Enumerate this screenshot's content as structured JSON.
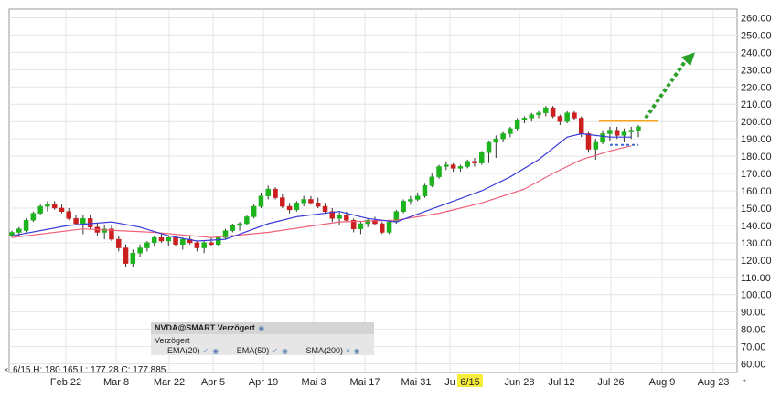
{
  "chart_data": {
    "type": "candlestick",
    "symbol_label": "NVDA@SMART Verzögert",
    "subtitle": "Verzögert",
    "ohlc_readout": "6/15  H: 180.165  L: 177.28  C: 177.885",
    "x_labels": [
      "Feb 22",
      "Mar 8",
      "Mar 22",
      "Apr 5",
      "Apr 19",
      "Mai 3",
      "Mai 17",
      "Mai 31",
      "Ju",
      "6/15",
      "Jun 28",
      "Jul 12",
      "Jul 26",
      "Aug 9",
      "Aug 23"
    ],
    "highlighted_x_label": "6/15",
    "y_ticks": [
      60,
      70,
      80,
      90,
      100,
      110,
      120,
      130,
      140,
      150,
      160,
      170,
      180,
      190,
      200,
      210,
      220,
      230,
      240,
      250,
      260
    ],
    "ylim": [
      55,
      265
    ],
    "legend": [
      {
        "name": "EMA(20)",
        "color": "#3b3bd9"
      },
      {
        "name": "EMA(50)",
        "color": "#f0607a"
      },
      {
        "name": "SMA(200)",
        "color": "#808080"
      }
    ],
    "colors": {
      "up": "#1db31d",
      "down": "#cc1f1f",
      "ema20": "#3b3bd9",
      "ema50": "#f0607a",
      "resistance": "#f5a623",
      "support": "#3b6bd9",
      "arrow": "#2aa02a"
    },
    "candles": [
      {
        "o": 134,
        "h": 137,
        "l": 133,
        "c": 136
      },
      {
        "o": 136,
        "h": 139,
        "l": 134,
        "c": 138
      },
      {
        "o": 137,
        "h": 144,
        "l": 136,
        "c": 143
      },
      {
        "o": 143,
        "h": 148,
        "l": 142,
        "c": 147
      },
      {
        "o": 147,
        "h": 152,
        "l": 146,
        "c": 151
      },
      {
        "o": 151,
        "h": 154,
        "l": 148,
        "c": 152
      },
      {
        "o": 152,
        "h": 154,
        "l": 149,
        "c": 150
      },
      {
        "o": 150,
        "h": 152,
        "l": 147,
        "c": 148
      },
      {
        "o": 148,
        "h": 150,
        "l": 143,
        "c": 144
      },
      {
        "o": 144,
        "h": 146,
        "l": 140,
        "c": 141
      },
      {
        "o": 141,
        "h": 146,
        "l": 135,
        "c": 144
      },
      {
        "o": 144,
        "h": 146,
        "l": 138,
        "c": 139
      },
      {
        "o": 139,
        "h": 141,
        "l": 134,
        "c": 136
      },
      {
        "o": 136,
        "h": 140,
        "l": 132,
        "c": 138
      },
      {
        "o": 138,
        "h": 140,
        "l": 131,
        "c": 132
      },
      {
        "o": 132,
        "h": 134,
        "l": 125,
        "c": 127
      },
      {
        "o": 127,
        "h": 129,
        "l": 116,
        "c": 118
      },
      {
        "o": 118,
        "h": 126,
        "l": 116,
        "c": 124
      },
      {
        "o": 124,
        "h": 129,
        "l": 122,
        "c": 127
      },
      {
        "o": 127,
        "h": 131,
        "l": 125,
        "c": 130
      },
      {
        "o": 130,
        "h": 134,
        "l": 128,
        "c": 133
      },
      {
        "o": 133,
        "h": 135,
        "l": 130,
        "c": 131
      },
      {
        "o": 131,
        "h": 134,
        "l": 128,
        "c": 133
      },
      {
        "o": 133,
        "h": 134,
        "l": 128,
        "c": 129
      },
      {
        "o": 129,
        "h": 133,
        "l": 126,
        "c": 132
      },
      {
        "o": 132,
        "h": 134,
        "l": 129,
        "c": 130
      },
      {
        "o": 130,
        "h": 131,
        "l": 125,
        "c": 127
      },
      {
        "o": 127,
        "h": 131,
        "l": 124,
        "c": 130
      },
      {
        "o": 130,
        "h": 133,
        "l": 128,
        "c": 129
      },
      {
        "o": 129,
        "h": 134,
        "l": 128,
        "c": 133
      },
      {
        "o": 133,
        "h": 138,
        "l": 132,
        "c": 137
      },
      {
        "o": 137,
        "h": 141,
        "l": 136,
        "c": 140
      },
      {
        "o": 140,
        "h": 142,
        "l": 137,
        "c": 141
      },
      {
        "o": 141,
        "h": 146,
        "l": 140,
        "c": 145
      },
      {
        "o": 145,
        "h": 152,
        "l": 144,
        "c": 151
      },
      {
        "o": 151,
        "h": 159,
        "l": 150,
        "c": 157
      },
      {
        "o": 157,
        "h": 163,
        "l": 155,
        "c": 161
      },
      {
        "o": 161,
        "h": 162,
        "l": 155,
        "c": 156
      },
      {
        "o": 156,
        "h": 158,
        "l": 150,
        "c": 151
      },
      {
        "o": 151,
        "h": 153,
        "l": 147,
        "c": 149
      },
      {
        "o": 149,
        "h": 154,
        "l": 148,
        "c": 153
      },
      {
        "o": 153,
        "h": 157,
        "l": 151,
        "c": 155
      },
      {
        "o": 155,
        "h": 157,
        "l": 152,
        "c": 153
      },
      {
        "o": 153,
        "h": 156,
        "l": 150,
        "c": 151
      },
      {
        "o": 151,
        "h": 153,
        "l": 147,
        "c": 148
      },
      {
        "o": 148,
        "h": 150,
        "l": 142,
        "c": 144
      },
      {
        "o": 144,
        "h": 148,
        "l": 140,
        "c": 146
      },
      {
        "o": 146,
        "h": 148,
        "l": 142,
        "c": 143
      },
      {
        "o": 143,
        "h": 144,
        "l": 136,
        "c": 138
      },
      {
        "o": 138,
        "h": 142,
        "l": 135,
        "c": 141
      },
      {
        "o": 141,
        "h": 144,
        "l": 139,
        "c": 143
      },
      {
        "o": 143,
        "h": 145,
        "l": 140,
        "c": 141
      },
      {
        "o": 141,
        "h": 142,
        "l": 135,
        "c": 136
      },
      {
        "o": 136,
        "h": 143,
        "l": 135,
        "c": 142
      },
      {
        "o": 142,
        "h": 149,
        "l": 141,
        "c": 148
      },
      {
        "o": 148,
        "h": 155,
        "l": 147,
        "c": 154
      },
      {
        "o": 154,
        "h": 157,
        "l": 152,
        "c": 155
      },
      {
        "o": 155,
        "h": 159,
        "l": 154,
        "c": 157
      },
      {
        "o": 157,
        "h": 164,
        "l": 156,
        "c": 163
      },
      {
        "o": 163,
        "h": 170,
        "l": 162,
        "c": 168
      },
      {
        "o": 168,
        "h": 175,
        "l": 167,
        "c": 174
      },
      {
        "o": 174,
        "h": 177,
        "l": 172,
        "c": 175
      },
      {
        "o": 175,
        "h": 176,
        "l": 171,
        "c": 173
      },
      {
        "o": 173,
        "h": 175,
        "l": 171,
        "c": 174
      },
      {
        "o": 174,
        "h": 178,
        "l": 173,
        "c": 177
      },
      {
        "o": 177,
        "h": 179,
        "l": 174,
        "c": 176
      },
      {
        "o": 176,
        "h": 183,
        "l": 175,
        "c": 182
      },
      {
        "o": 182,
        "h": 189,
        "l": 176,
        "c": 188
      },
      {
        "o": 188,
        "h": 192,
        "l": 179,
        "c": 190
      },
      {
        "o": 190,
        "h": 194,
        "l": 188,
        "c": 193
      },
      {
        "o": 193,
        "h": 197,
        "l": 191,
        "c": 196
      },
      {
        "o": 196,
        "h": 202,
        "l": 195,
        "c": 201
      },
      {
        "o": 201,
        "h": 203,
        "l": 199,
        "c": 202
      },
      {
        "o": 202,
        "h": 205,
        "l": 200,
        "c": 204
      },
      {
        "o": 204,
        "h": 206,
        "l": 202,
        "c": 205
      },
      {
        "o": 205,
        "h": 209,
        "l": 203,
        "c": 208
      },
      {
        "o": 208,
        "h": 209,
        "l": 202,
        "c": 203
      },
      {
        "o": 203,
        "h": 204,
        "l": 198,
        "c": 200
      },
      {
        "o": 200,
        "h": 206,
        "l": 199,
        "c": 205
      },
      {
        "o": 205,
        "h": 206,
        "l": 201,
        "c": 202
      },
      {
        "o": 202,
        "h": 203,
        "l": 191,
        "c": 193
      },
      {
        "o": 193,
        "h": 194,
        "l": 182,
        "c": 184
      },
      {
        "o": 184,
        "h": 190,
        "l": 178,
        "c": 188
      },
      {
        "o": 188,
        "h": 195,
        "l": 187,
        "c": 193
      },
      {
        "o": 193,
        "h": 197,
        "l": 189,
        "c": 195
      },
      {
        "o": 195,
        "h": 197,
        "l": 190,
        "c": 192
      },
      {
        "o": 192,
        "h": 196,
        "l": 188,
        "c": 194
      },
      {
        "o": 194,
        "h": 197,
        "l": 190,
        "c": 195
      },
      {
        "o": 195,
        "h": 198,
        "l": 191,
        "c": 197
      }
    ],
    "ema20": [
      [
        0,
        134
      ],
      [
        8,
        140
      ],
      [
        14,
        142
      ],
      [
        18,
        139
      ],
      [
        22,
        134
      ],
      [
        26,
        131
      ],
      [
        30,
        132
      ],
      [
        36,
        141
      ],
      [
        40,
        145
      ],
      [
        46,
        148
      ],
      [
        50,
        144
      ],
      [
        54,
        142
      ],
      [
        58,
        148
      ],
      [
        62,
        154
      ],
      [
        66,
        160
      ],
      [
        70,
        168
      ],
      [
        74,
        178
      ],
      [
        78,
        191
      ],
      [
        80,
        193
      ],
      [
        82,
        192
      ],
      [
        84,
        191
      ],
      [
        87,
        191
      ]
    ],
    "ema50": [
      [
        0,
        133
      ],
      [
        10,
        138
      ],
      [
        20,
        136
      ],
      [
        28,
        133
      ],
      [
        36,
        136
      ],
      [
        46,
        142
      ],
      [
        54,
        143
      ],
      [
        60,
        147
      ],
      [
        66,
        153
      ],
      [
        72,
        161
      ],
      [
        76,
        170
      ],
      [
        80,
        178
      ],
      [
        84,
        183
      ],
      [
        87,
        186
      ]
    ],
    "resistance_level": 200.5,
    "support_level": 186.5,
    "arrow_target": 240
  }
}
